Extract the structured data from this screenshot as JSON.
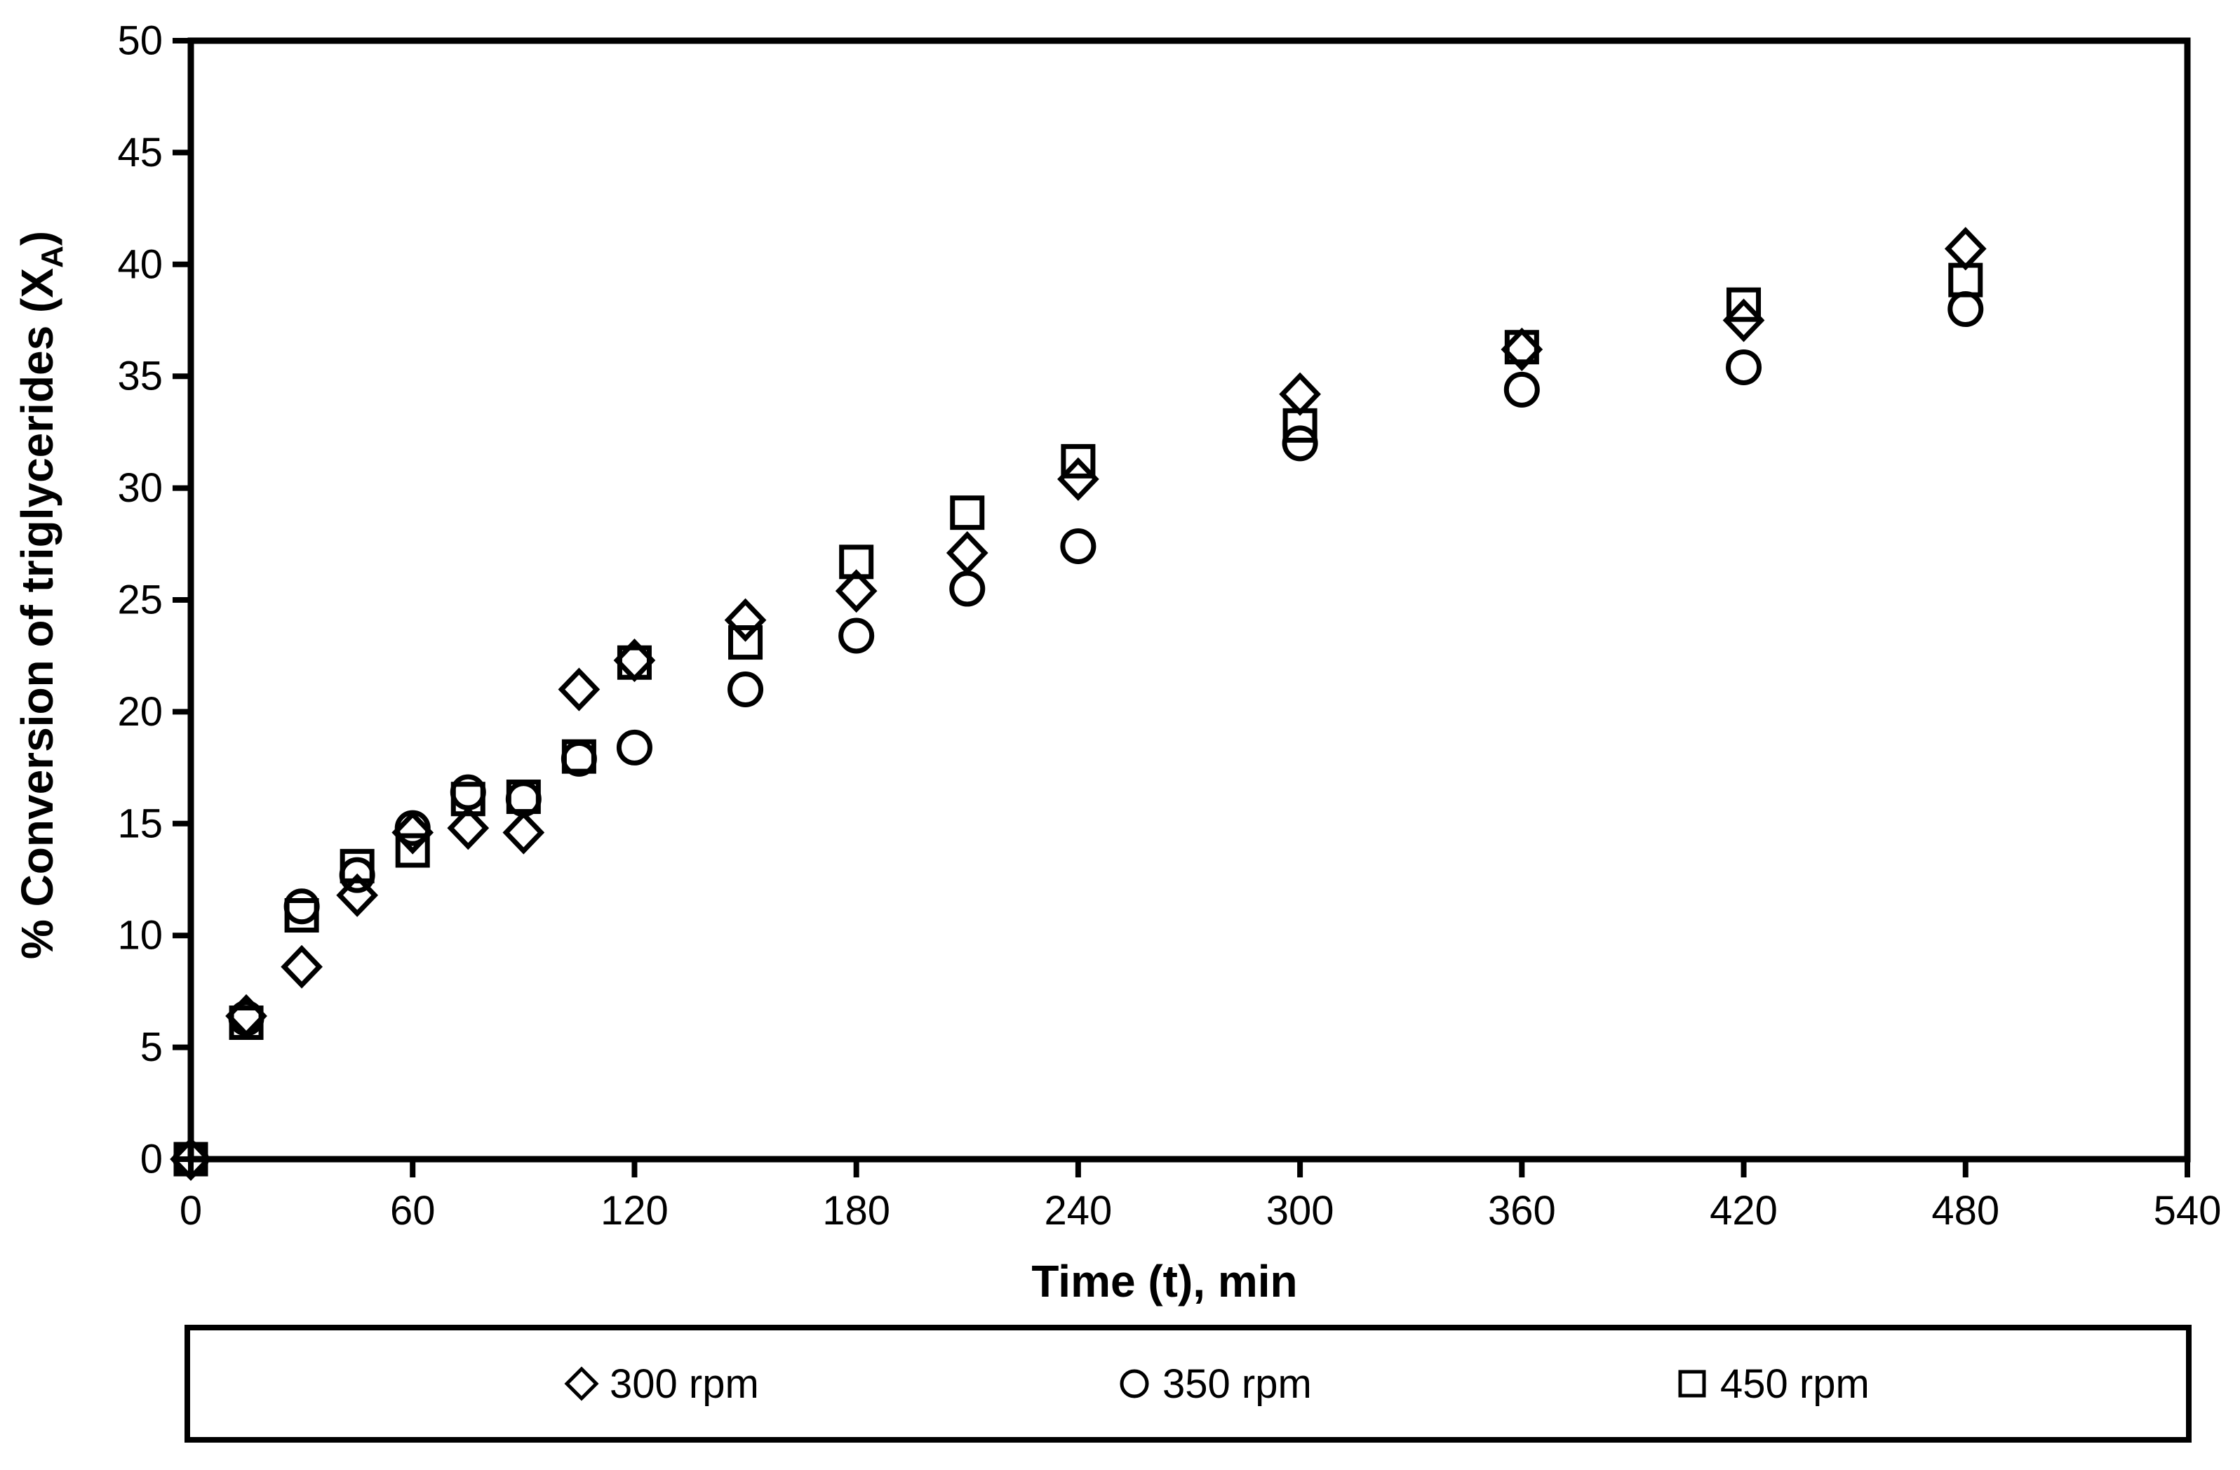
{
  "figure": {
    "background": "#ffffff",
    "axis_color": "#000000",
    "marker_color": "#000000"
  },
  "chart_data": {
    "type": "scatter",
    "title": "",
    "xlabel": "Time (t), min",
    "ylabel": "% Conversion of triglycerides (XA)",
    "ylabel_parts": {
      "prefix": "% Conversion of triglycerides (X",
      "sub": "A",
      "suffix": ")"
    },
    "xlim": [
      0,
      540
    ],
    "ylim": [
      0,
      50
    ],
    "x_ticks": [
      0,
      60,
      120,
      180,
      240,
      300,
      360,
      420,
      480,
      540
    ],
    "y_ticks": [
      0,
      5,
      10,
      15,
      20,
      25,
      30,
      35,
      40,
      45,
      50
    ],
    "grid": false,
    "legend_position": "bottom-box",
    "series": [
      {
        "name": "300 rpm",
        "marker": "diamond",
        "points": [
          [
            0,
            0
          ],
          [
            15,
            6.4
          ],
          [
            30,
            8.6
          ],
          [
            45,
            11.8
          ],
          [
            60,
            14.6
          ],
          [
            75,
            14.8
          ],
          [
            90,
            14.6
          ],
          [
            105,
            21.0
          ],
          [
            120,
            22.3
          ],
          [
            150,
            24.1
          ],
          [
            180,
            25.4
          ],
          [
            210,
            27.1
          ],
          [
            240,
            30.4
          ],
          [
            300,
            34.2
          ],
          [
            360,
            36.2
          ],
          [
            420,
            37.5
          ],
          [
            480,
            40.7
          ]
        ]
      },
      {
        "name": "350 rpm",
        "marker": "circle",
        "points": [
          [
            0,
            0
          ],
          [
            15,
            6.3
          ],
          [
            30,
            11.3
          ],
          [
            45,
            12.7
          ],
          [
            60,
            14.8
          ],
          [
            75,
            16.4
          ],
          [
            90,
            16.1
          ],
          [
            105,
            17.9
          ],
          [
            120,
            18.4
          ],
          [
            150,
            21.0
          ],
          [
            180,
            23.4
          ],
          [
            210,
            25.5
          ],
          [
            240,
            27.4
          ],
          [
            300,
            32.0
          ],
          [
            360,
            34.4
          ],
          [
            420,
            35.4
          ],
          [
            480,
            38.0
          ]
        ]
      },
      {
        "name": "450 rpm",
        "marker": "square",
        "points": [
          [
            0,
            0
          ],
          [
            15,
            6.1
          ],
          [
            30,
            10.9
          ],
          [
            45,
            13.1
          ],
          [
            60,
            13.8
          ],
          [
            75,
            16.1
          ],
          [
            90,
            16.2
          ],
          [
            105,
            18.0
          ],
          [
            120,
            22.2
          ],
          [
            150,
            23.1
          ],
          [
            180,
            26.7
          ],
          [
            210,
            28.9
          ],
          [
            240,
            31.2
          ],
          [
            300,
            32.8
          ],
          [
            360,
            36.3
          ],
          [
            420,
            38.2
          ],
          [
            480,
            39.3
          ]
        ]
      }
    ]
  }
}
